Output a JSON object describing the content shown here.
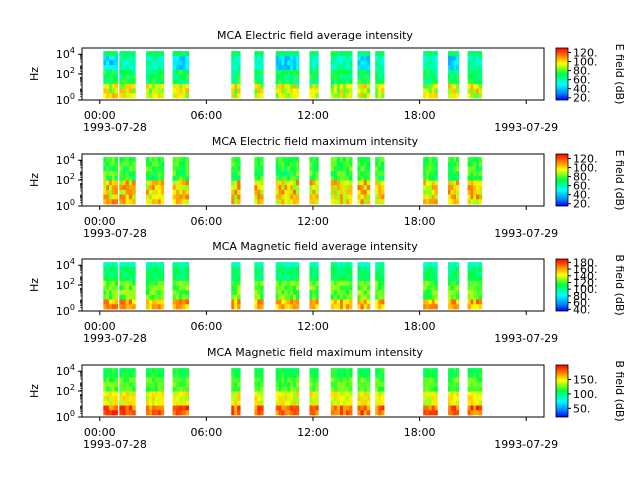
{
  "chart_data": [
    {
      "type": "heatmap",
      "title": "MCA  Electric field average intensity",
      "ylabel": "Hz",
      "ytick_labels": [
        "10^0",
        "10^2",
        "10^4"
      ],
      "ylim": [
        1,
        31623
      ],
      "yscale": "log",
      "xtick_labels": [
        "00:00",
        "06:00",
        "12:00",
        "18:00",
        ""
      ],
      "x_start_label": "1993-07-28",
      "x_end_label": "1993-07-29",
      "xlim_hours": [
        0,
        24
      ],
      "colorbar_label": "E field (dB)",
      "colorbar_range": [
        15,
        130
      ],
      "colorbar_ticks": [
        "20.",
        "40.",
        "60.",
        "80.",
        "100.",
        "120."
      ],
      "colorbar_tick_values": [
        20,
        40,
        60,
        80,
        100,
        120
      ],
      "data_blocks_hours": [
        [
          0.2,
          1.0
        ],
        [
          1.1,
          2.0
        ],
        [
          2.6,
          3.6
        ],
        [
          4.1,
          5.0
        ],
        [
          7.4,
          7.9
        ],
        [
          8.7,
          9.2
        ],
        [
          9.9,
          11.2
        ],
        [
          11.8,
          12.3
        ],
        [
          13.0,
          14.2
        ],
        [
          14.5,
          15.2
        ],
        [
          15.5,
          16.0
        ],
        [
          18.2,
          19.0
        ],
        [
          19.6,
          20.2
        ],
        [
          20.7,
          21.5
        ]
      ],
      "style": "avg_e"
    },
    {
      "type": "heatmap",
      "title": "MCA  Electric field maximum intensity",
      "ylabel": "Hz",
      "ytick_labels": [
        "10^0",
        "10^2",
        "10^4"
      ],
      "ylim": [
        1,
        31623
      ],
      "yscale": "log",
      "xtick_labels": [
        "00:00",
        "06:00",
        "12:00",
        "18:00",
        ""
      ],
      "x_start_label": "1993-07-28",
      "x_end_label": "1993-07-29",
      "xlim_hours": [
        0,
        24
      ],
      "colorbar_label": "E field (dB)",
      "colorbar_range": [
        15,
        130
      ],
      "colorbar_ticks": [
        "20.",
        "40.",
        "60.",
        "80.",
        "100.",
        "120."
      ],
      "colorbar_tick_values": [
        20,
        40,
        60,
        80,
        100,
        120
      ],
      "data_blocks_hours": [
        [
          0.2,
          1.0
        ],
        [
          1.1,
          2.0
        ],
        [
          2.6,
          3.6
        ],
        [
          4.1,
          5.0
        ],
        [
          7.4,
          7.9
        ],
        [
          8.7,
          9.2
        ],
        [
          9.9,
          11.2
        ],
        [
          11.8,
          12.3
        ],
        [
          13.0,
          14.2
        ],
        [
          14.5,
          15.2
        ],
        [
          15.5,
          16.0
        ],
        [
          18.2,
          19.0
        ],
        [
          19.6,
          20.2
        ],
        [
          20.7,
          21.5
        ]
      ],
      "style": "max_e"
    },
    {
      "type": "heatmap",
      "title": "MCA  Magnetic field average intensity",
      "ylabel": "Hz",
      "ytick_labels": [
        "10^0",
        "10^2",
        "10^4"
      ],
      "ylim": [
        1,
        31623
      ],
      "yscale": "log",
      "xtick_labels": [
        "00:00",
        "06:00",
        "12:00",
        "18:00",
        ""
      ],
      "x_start_label": "1993-07-28",
      "x_end_label": "1993-07-29",
      "xlim_hours": [
        0,
        24
      ],
      "colorbar_label": "B field (dB)",
      "colorbar_range": [
        35,
        190
      ],
      "colorbar_ticks": [
        "40.",
        "60.",
        "80.",
        "100.",
        "120.",
        "140.",
        "160.",
        "180."
      ],
      "colorbar_tick_values": [
        40,
        60,
        80,
        100,
        120,
        140,
        160,
        180
      ],
      "data_blocks_hours": [
        [
          0.2,
          1.0
        ],
        [
          1.1,
          2.0
        ],
        [
          2.6,
          3.6
        ],
        [
          4.1,
          5.0
        ],
        [
          7.4,
          7.9
        ],
        [
          8.7,
          9.2
        ],
        [
          9.9,
          11.2
        ],
        [
          11.8,
          12.3
        ],
        [
          13.0,
          14.2
        ],
        [
          14.5,
          15.2
        ],
        [
          15.5,
          16.0
        ],
        [
          18.2,
          19.0
        ],
        [
          19.6,
          20.2
        ],
        [
          20.7,
          21.5
        ]
      ],
      "style": "avg_b"
    },
    {
      "type": "heatmap",
      "title": "MCA  Magnetic field maximum intensity",
      "ylabel": "Hz",
      "ytick_labels": [
        "10^0",
        "10^2",
        "10^4"
      ],
      "ylim": [
        1,
        31623
      ],
      "yscale": "log",
      "xtick_labels": [
        "00:00",
        "06:00",
        "12:00",
        "18:00",
        ""
      ],
      "x_start_label": "1993-07-28",
      "x_end_label": "1993-07-29",
      "xlim_hours": [
        0,
        24
      ],
      "colorbar_label": "B field (dB)",
      "colorbar_range": [
        20,
        200
      ],
      "colorbar_ticks": [
        "50.",
        "100.",
        "150."
      ],
      "colorbar_tick_values": [
        50,
        100,
        150
      ],
      "data_blocks_hours": [
        [
          0.2,
          1.0
        ],
        [
          1.1,
          2.0
        ],
        [
          2.6,
          3.6
        ],
        [
          4.1,
          5.0
        ],
        [
          7.4,
          7.9
        ],
        [
          8.7,
          9.2
        ],
        [
          9.9,
          11.2
        ],
        [
          11.8,
          12.3
        ],
        [
          13.0,
          14.2
        ],
        [
          14.5,
          15.2
        ],
        [
          15.5,
          16.0
        ],
        [
          18.2,
          19.0
        ],
        [
          19.6,
          20.2
        ],
        [
          20.7,
          21.5
        ]
      ],
      "style": "max_b"
    }
  ]
}
